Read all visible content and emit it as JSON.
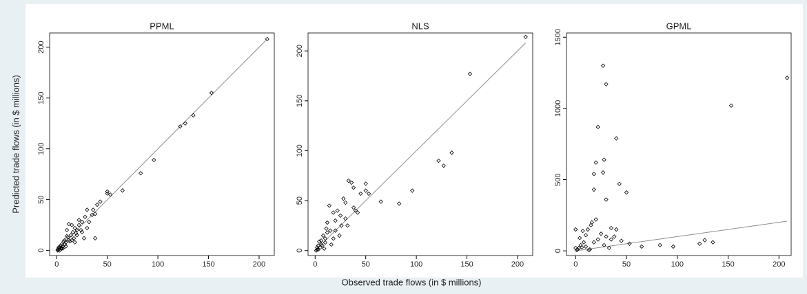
{
  "ylabel": "Predicted trade flows (in $ millions)",
  "xlabel": "Observed trade flows (in $ millions)",
  "chart_data": [
    {
      "type": "scatter",
      "title": "PPML",
      "color": "#000000",
      "line_color": "#8c8c8c",
      "x": [
        208,
        153,
        135,
        127,
        122,
        96,
        83,
        65,
        50,
        50,
        53,
        43,
        40,
        38,
        36,
        38,
        30,
        28,
        25,
        22,
        20,
        18,
        15,
        12,
        10,
        14,
        17,
        8,
        5,
        3,
        2,
        6,
        9,
        12,
        4,
        1,
        7,
        25,
        20,
        32,
        27,
        11,
        16,
        30,
        35,
        22,
        13,
        9,
        6,
        4,
        3,
        2,
        1,
        5,
        8,
        10,
        18,
        24,
        15,
        19
      ],
      "values": [
        208,
        155,
        133,
        125,
        122,
        89,
        76,
        59,
        58,
        56,
        55,
        48,
        45,
        36,
        40,
        12,
        40,
        33,
        28,
        25,
        20,
        22,
        25,
        26,
        20,
        15,
        12,
        10,
        6,
        3,
        1,
        4,
        8,
        10,
        5,
        1,
        9,
        18,
        15,
        28,
        12,
        13,
        18,
        22,
        35,
        30,
        9,
        4,
        2,
        2,
        0,
        3,
        0,
        2,
        6,
        14,
        8,
        20,
        10,
        17
      ],
      "ref_line": {
        "x": [
          0,
          208
        ],
        "y": [
          0,
          208
        ]
      },
      "xlim": [
        -7,
        215
      ],
      "ylim": [
        -5,
        214
      ],
      "xticks": [
        0,
        50,
        100,
        150,
        200
      ],
      "yticks": [
        0,
        50,
        100,
        150,
        200
      ]
    },
    {
      "type": "scatter",
      "title": "NLS",
      "color": "#000000",
      "line_color": "#8c8c8c",
      "x": [
        208,
        153,
        135,
        127,
        122,
        96,
        83,
        65,
        53,
        50,
        50,
        45,
        40,
        38,
        36,
        33,
        38,
        30,
        28,
        25,
        26,
        22,
        20,
        18,
        15,
        12,
        10,
        8,
        5,
        3,
        2,
        1,
        6,
        12,
        18,
        24,
        30,
        32,
        42,
        14,
        10,
        20,
        7,
        4,
        9,
        6,
        3,
        2,
        11,
        16
      ],
      "values": [
        214,
        177,
        98,
        85,
        90,
        60,
        47,
        49,
        57,
        67,
        60,
        57,
        40,
        63,
        68,
        70,
        43,
        48,
        52,
        35,
        25,
        40,
        30,
        38,
        20,
        18,
        8,
        15,
        3,
        5,
        1,
        0,
        10,
        28,
        12,
        15,
        32,
        25,
        38,
        45,
        12,
        20,
        5,
        9,
        2,
        6,
        1,
        3,
        22,
        6
      ],
      "ref_line": {
        "x": [
          0,
          208
        ],
        "y": [
          0,
          208
        ]
      },
      "xlim": [
        -7,
        215
      ],
      "ylim": [
        -5,
        218
      ],
      "xticks": [
        0,
        50,
        100,
        150,
        200
      ],
      "yticks": [
        0,
        50,
        100,
        150,
        200
      ]
    },
    {
      "type": "scatter",
      "title": "GPML",
      "color": "#000000",
      "line_color": "#8c8c8c",
      "x": [
        208,
        153,
        135,
        127,
        122,
        96,
        83,
        65,
        53,
        50,
        43,
        40,
        40,
        38,
        30,
        27,
        28,
        27,
        30,
        22,
        20,
        18,
        18,
        20,
        16,
        15,
        12,
        10,
        8,
        5,
        3,
        2,
        0,
        0,
        1,
        25,
        30,
        35,
        45,
        22,
        6,
        10,
        14,
        28,
        33,
        4,
        7,
        13,
        18,
        35
      ],
      "values": [
        1215,
        1020,
        60,
        75,
        50,
        30,
        40,
        30,
        50,
        410,
        470,
        790,
        150,
        100,
        1170,
        1300,
        640,
        550,
        360,
        870,
        620,
        540,
        430,
        220,
        200,
        180,
        150,
        110,
        60,
        40,
        20,
        10,
        150,
        20,
        5,
        120,
        100,
        80,
        70,
        80,
        25,
        30,
        10,
        40,
        20,
        90,
        140,
        5,
        60,
        160
      ],
      "ref_line": {
        "x": [
          0,
          208
        ],
        "y": [
          0,
          208
        ]
      },
      "xlim": [
        -9,
        212
      ],
      "ylim": [
        -33,
        1530
      ],
      "xticks": [
        0,
        50,
        100,
        150,
        200
      ],
      "yticks": [
        0,
        500,
        1000,
        1500
      ]
    }
  ]
}
